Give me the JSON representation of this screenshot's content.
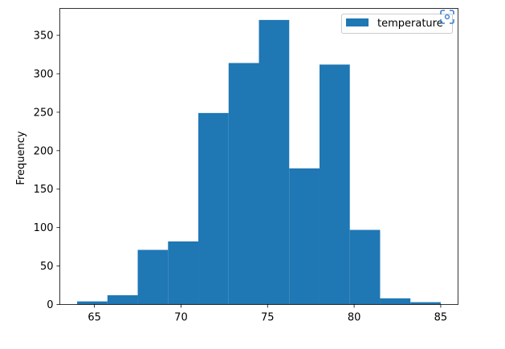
{
  "chart_data": {
    "type": "bar",
    "variant": "histogram",
    "title": "",
    "xlabel": "",
    "ylabel": "Frequency",
    "xlim": [
      63,
      86
    ],
    "ylim": [
      0,
      385
    ],
    "xticks": [
      65,
      70,
      75,
      80,
      85
    ],
    "yticks": [
      0,
      50,
      100,
      150,
      200,
      250,
      300,
      350
    ],
    "grid": false,
    "legend": "top-right",
    "series": [
      {
        "name": "temperature",
        "color": "#1f77b4",
        "bin_edges": [
          64.0,
          65.75,
          67.5,
          69.25,
          71.0,
          72.75,
          74.5,
          76.25,
          78.0,
          79.75,
          81.5,
          83.25,
          85.0
        ],
        "values": [
          4,
          12,
          71,
          82,
          249,
          314,
          370,
          177,
          312,
          97,
          8,
          3
        ]
      }
    ]
  },
  "icons": {
    "focus": "focus-scan-icon"
  }
}
